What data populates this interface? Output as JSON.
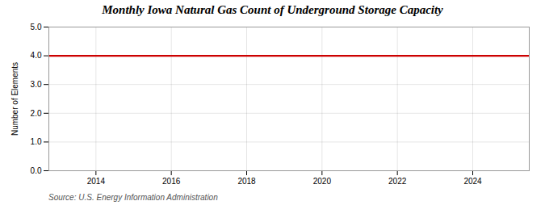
{
  "chart_data": {
    "type": "line",
    "title": "Monthly Iowa Natural Gas Count of Underground Storage Capacity",
    "ylabel": "Number of Elements",
    "source": "Source: U.S. Energy Information Administration",
    "x": [
      2012.75,
      2025.5
    ],
    "values": [
      4.0,
      4.0
    ],
    "color": "#cc0000",
    "xlim": [
      2012.75,
      2025.5
    ],
    "xticks": [
      2014,
      2016,
      2018,
      2020,
      2022,
      2024
    ],
    "ylim": [
      0.0,
      5.0
    ],
    "yticks": [
      {
        "value": 0.0,
        "label": "0.0"
      },
      {
        "value": 1.0,
        "label": "1.0"
      },
      {
        "value": 2.0,
        "label": "2.0"
      },
      {
        "value": 3.0,
        "label": "3.0"
      },
      {
        "value": 4.0,
        "label": "4.0"
      },
      {
        "value": 5.0,
        "label": "5.0"
      }
    ],
    "grid": true
  }
}
